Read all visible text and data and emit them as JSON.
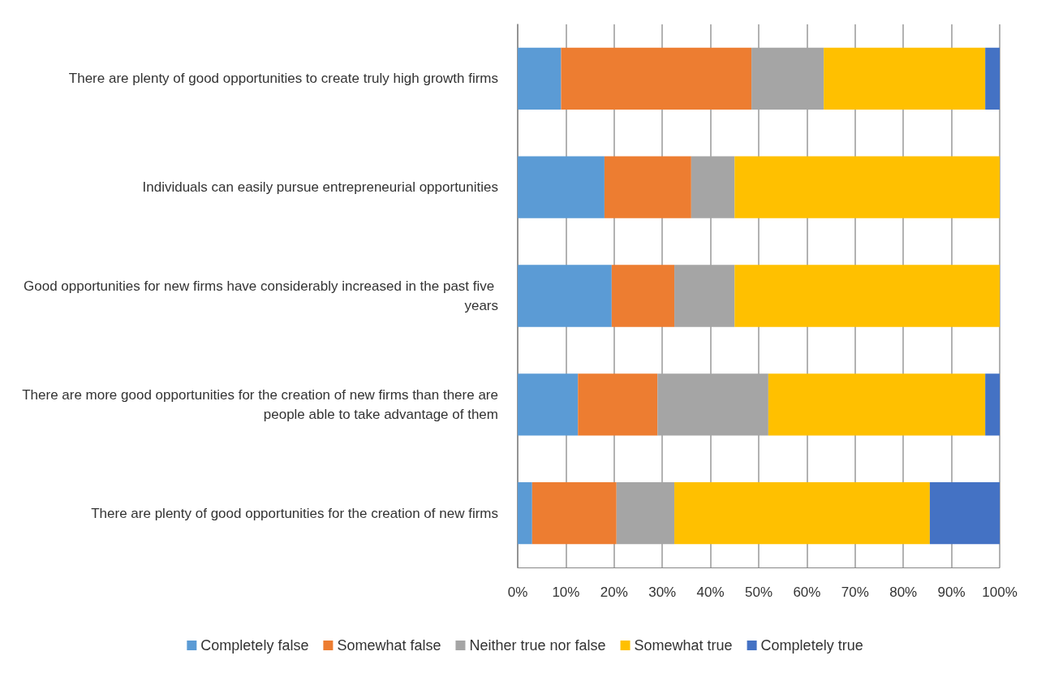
{
  "chart_data": {
    "type": "bar",
    "orientation": "horizontal",
    "stacked": true,
    "categories": [
      "There are plenty of good opportunities to create truly high growth firms",
      "Individuals can easily pursue entrepreneurial opportunities",
      "Good opportunities for new firms have considerably increased in the past five years",
      "There are more good opportunities for the creation of new firms than there are people able to take advantage of them",
      "There are plenty of good opportunities for the creation of new firms"
    ],
    "series": [
      {
        "name": "Completely false",
        "color": "#5b9bd5",
        "values": [
          9,
          18,
          19.5,
          12.5,
          3
        ]
      },
      {
        "name": "Somewhat false",
        "color": "#ed7d31",
        "values": [
          39.5,
          18,
          13,
          16.5,
          17.5
        ]
      },
      {
        "name": "Neither true nor false",
        "color": "#a5a5a5",
        "values": [
          15,
          9,
          12.5,
          23,
          12
        ]
      },
      {
        "name": "Somewhat true",
        "color": "#ffc000",
        "values": [
          33.5,
          55,
          55,
          45,
          53
        ]
      },
      {
        "name": "Completely true",
        "color": "#4472c4",
        "values": [
          3,
          0,
          0,
          3,
          14.5
        ]
      }
    ],
    "xlim": [
      0,
      100
    ],
    "xticks": [
      {
        "value": 0,
        "label": "0%"
      },
      {
        "value": 10,
        "label": "10%"
      },
      {
        "value": 20,
        "label": "20%"
      },
      {
        "value": 30,
        "label": "30%"
      },
      {
        "value": 40,
        "label": "40%"
      },
      {
        "value": 50,
        "label": "50%"
      },
      {
        "value": 60,
        "label": "60%"
      },
      {
        "value": 70,
        "label": "70%"
      },
      {
        "value": 80,
        "label": "80%"
      },
      {
        "value": 90,
        "label": "90%"
      },
      {
        "value": 100,
        "label": "100%"
      }
    ],
    "grid": "x",
    "legend": "bottom"
  }
}
